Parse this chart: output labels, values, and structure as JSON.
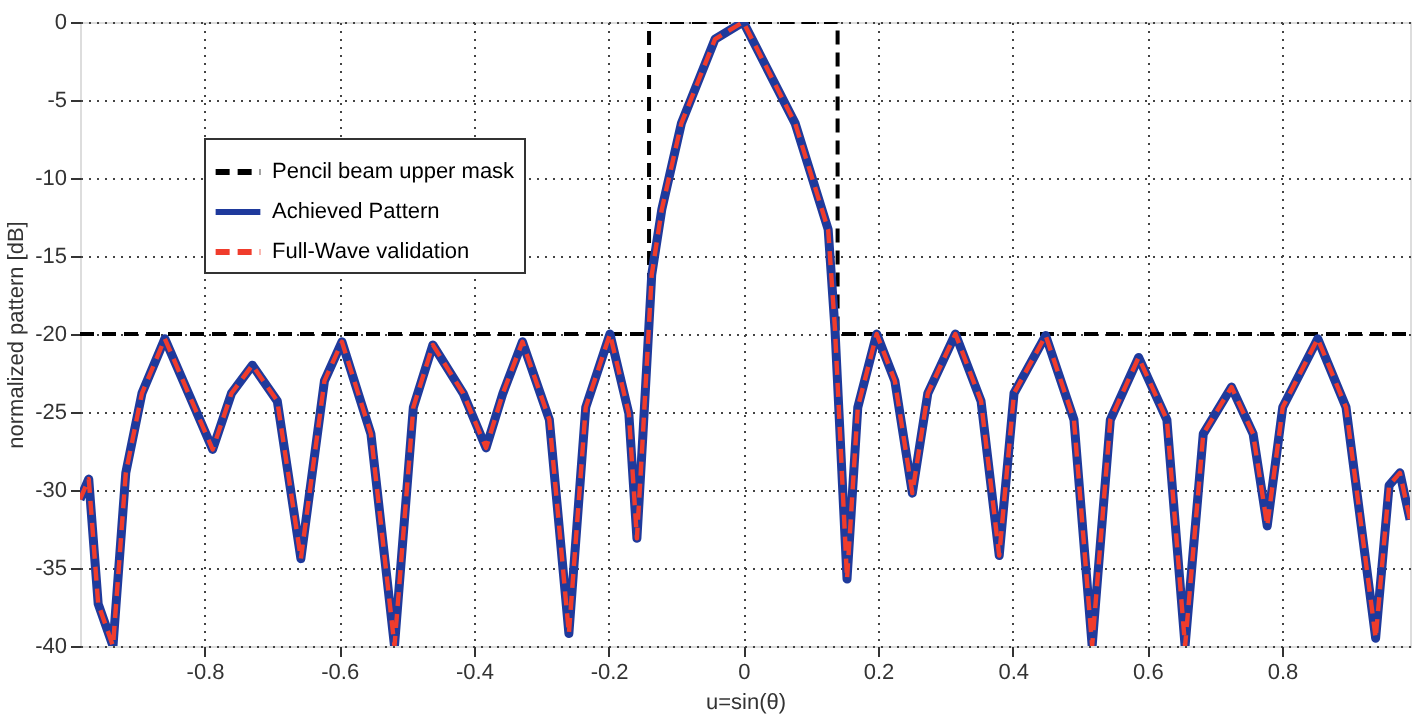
{
  "chart_data": {
    "type": "line",
    "xlabel": "u=sin(θ)",
    "ylabel": "normalized pattern [dB]",
    "xlim": [
      -0.985,
      0.99
    ],
    "ylim": [
      -40,
      0
    ],
    "xticks": [
      -0.8,
      -0.6,
      -0.4,
      -0.2,
      0,
      0.2,
      0.4,
      0.6,
      0.8
    ],
    "yticks": [
      -40,
      -35,
      -30,
      -25,
      -20,
      -15,
      -10,
      -5,
      0
    ],
    "grid": true,
    "legend": "left",
    "marker": "none",
    "series": [
      {
        "name": "Pencil beam upper mask",
        "color": "#000000",
        "line_style": "dashed",
        "x": [
          -0.985,
          -0.14,
          -0.14,
          0.14,
          0.14,
          0.99
        ],
        "values": [
          -20,
          -20,
          0,
          0,
          -20,
          -20
        ]
      },
      {
        "name": "Achieved Pattern",
        "color": "#1f3a9c",
        "line_style": "solid",
        "x": [
          -0.985,
          -0.972,
          -0.958,
          -0.936,
          -0.917,
          -0.893,
          -0.859,
          -0.819,
          -0.788,
          -0.76,
          -0.729,
          -0.692,
          -0.657,
          -0.622,
          -0.596,
          -0.553,
          -0.518,
          -0.49,
          -0.461,
          -0.416,
          -0.382,
          -0.357,
          -0.328,
          -0.288,
          -0.259,
          -0.234,
          -0.198,
          -0.17,
          -0.158,
          -0.149,
          -0.136,
          -0.121,
          -0.092,
          -0.042,
          0,
          0.077,
          0.126,
          0.136,
          0.154,
          0.17,
          0.198,
          0.225,
          0.251,
          0.274,
          0.315,
          0.353,
          0.38,
          0.402,
          0.449,
          0.491,
          0.518,
          0.545,
          0.587,
          0.629,
          0.656,
          0.683,
          0.725,
          0.757,
          0.778,
          0.801,
          0.853,
          0.895,
          0.939,
          0.959,
          0.975,
          0.99
        ],
        "values": [
          -30.6,
          -29.3,
          -37.3,
          -40,
          -28.9,
          -23.8,
          -20.3,
          -24.3,
          -27.4,
          -23.8,
          -22.0,
          -24.3,
          -34.4,
          -23.0,
          -20.5,
          -26.4,
          -40,
          -24.7,
          -20.7,
          -23.8,
          -27.3,
          -23.8,
          -20.5,
          -25.5,
          -39.2,
          -24.7,
          -20.0,
          -25.1,
          -33.1,
          -26.4,
          -16.2,
          -12.0,
          -6.5,
          -1.1,
          0,
          -6.5,
          -13.3,
          -19.6,
          -35.7,
          -24.7,
          -20.0,
          -23.0,
          -30.2,
          -23.8,
          -20.0,
          -24.3,
          -34.2,
          -23.8,
          -20.1,
          -25.5,
          -40,
          -25.5,
          -21.5,
          -25.5,
          -40,
          -26.4,
          -23.4,
          -26.4,
          -32.3,
          -24.7,
          -20.3,
          -24.7,
          -39.5,
          -29.7,
          -28.9,
          -31.9
        ]
      },
      {
        "name": "Full-Wave validation",
        "color": "#f03c2c",
        "line_style": "dashed",
        "x": [
          -0.985,
          -0.972,
          -0.958,
          -0.936,
          -0.917,
          -0.893,
          -0.859,
          -0.819,
          -0.788,
          -0.76,
          -0.729,
          -0.692,
          -0.657,
          -0.622,
          -0.596,
          -0.553,
          -0.518,
          -0.49,
          -0.461,
          -0.416,
          -0.382,
          -0.357,
          -0.328,
          -0.288,
          -0.259,
          -0.234,
          -0.198,
          -0.17,
          -0.158,
          -0.149,
          -0.136,
          -0.121,
          -0.092,
          -0.042,
          0,
          0.077,
          0.126,
          0.136,
          0.154,
          0.17,
          0.198,
          0.225,
          0.251,
          0.274,
          0.315,
          0.353,
          0.38,
          0.402,
          0.449,
          0.491,
          0.518,
          0.545,
          0.587,
          0.629,
          0.656,
          0.683,
          0.725,
          0.757,
          0.778,
          0.801,
          0.853,
          0.895,
          0.939,
          0.959,
          0.975,
          0.99
        ],
        "values": [
          -30.6,
          -29.3,
          -37.3,
          -40,
          -28.9,
          -23.8,
          -20.3,
          -24.3,
          -27.4,
          -23.8,
          -22.0,
          -24.3,
          -34.4,
          -23.0,
          -20.5,
          -26.4,
          -40,
          -24.7,
          -20.7,
          -23.8,
          -27.3,
          -23.8,
          -20.5,
          -25.5,
          -39.2,
          -24.7,
          -20.0,
          -25.1,
          -33.1,
          -26.4,
          -16.2,
          -12.0,
          -6.5,
          -1.1,
          0,
          -6.5,
          -13.3,
          -19.6,
          -35.7,
          -24.7,
          -20.0,
          -23.0,
          -30.2,
          -23.8,
          -20.0,
          -24.3,
          -34.2,
          -23.8,
          -20.1,
          -25.5,
          -40,
          -25.5,
          -21.5,
          -25.5,
          -40,
          -26.4,
          -23.4,
          -26.4,
          -32.3,
          -24.7,
          -20.3,
          -24.7,
          -39.5,
          -29.7,
          -28.9,
          -31.9
        ]
      }
    ]
  }
}
